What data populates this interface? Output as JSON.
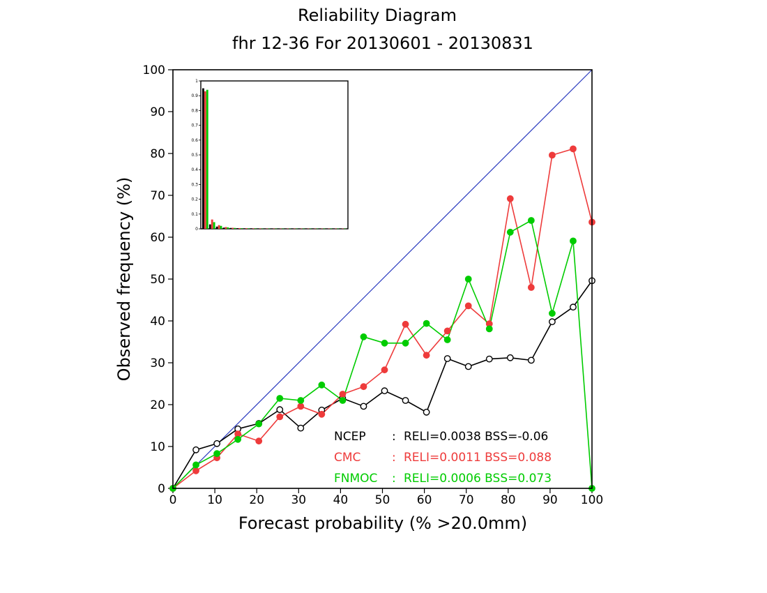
{
  "chart_data": {
    "type": "line",
    "title": "Reliability Diagram",
    "subtitle": "fhr 12-36 For 20130601 - 20130831",
    "xlabel": "Forecast probability (% >20.0mm)",
    "ylabel": "Observed frequency (%)",
    "xlim": [
      0,
      100
    ],
    "ylim": [
      0,
      100
    ],
    "x_ticks": [
      "0",
      "10",
      "20",
      "30",
      "40",
      "50",
      "60",
      "70",
      "80",
      "90",
      "100"
    ],
    "y_ticks": [
      "0",
      "10",
      "20",
      "30",
      "40",
      "50",
      "60",
      "70",
      "80",
      "90",
      "100"
    ],
    "grid": false,
    "diagonal_color": "#2b3bbf",
    "x": [
      0,
      5.5,
      10.5,
      15.5,
      20.5,
      25.5,
      30.5,
      35.5,
      40.5,
      45.5,
      50.5,
      55.5,
      60.5,
      65.5,
      70.5,
      75.5,
      80.5,
      85.5,
      90.5,
      95.5,
      100
    ],
    "series": [
      {
        "name": "NCEP",
        "color": "#000000",
        "marker": "open-circle",
        "values": [
          0,
          9.2,
          10.7,
          14.2,
          15.5,
          18.8,
          14.4,
          18.7,
          21.5,
          19.6,
          23.3,
          21.0,
          18.2,
          31.0,
          29.1,
          30.9,
          31.2,
          30.6,
          39.8,
          43.3,
          49.6
        ],
        "legend_label": "NCEP",
        "legend_sep": ":",
        "legend_stats": "RELI=0.0038  BSS=-0.06"
      },
      {
        "name": "CMC",
        "color": "#ee3b3b",
        "marker": "filled-circle",
        "values": [
          0,
          4.2,
          7.3,
          13.0,
          11.3,
          17.1,
          19.6,
          17.7,
          22.5,
          24.3,
          28.3,
          39.2,
          31.8,
          37.6,
          43.6,
          39.3,
          69.2,
          48.0,
          79.6,
          81.1,
          63.6
        ],
        "legend_label": "CMC",
        "legend_sep": ":",
        "legend_stats": "RELI=0.0011  BSS=0.088"
      },
      {
        "name": "FNMOC",
        "color": "#00cc00",
        "marker": "filled-circle",
        "values": [
          0,
          5.6,
          8.3,
          11.7,
          15.4,
          21.5,
          21.0,
          24.7,
          21.0,
          36.2,
          34.7,
          34.7,
          39.4,
          35.5,
          50.0,
          38.1,
          61.2,
          64.0,
          41.8,
          59.1,
          0
        ],
        "legend_label": "FNMOC",
        "legend_sep": ":",
        "legend_stats": "RELI=0.0006  BSS=0.073"
      }
    ],
    "inset": {
      "type": "bar",
      "ylim": [
        0,
        1
      ],
      "y_ticks": [
        "0",
        "0.1",
        "0.2",
        "0.3",
        "0.4",
        "0.5",
        "0.6",
        "0.7",
        "0.8",
        "0.9",
        "1"
      ],
      "bins": 21,
      "series": [
        {
          "name": "NCEP",
          "color": "#000000",
          "values": [
            0.95,
            0.03,
            0.015,
            0.008,
            0.006,
            0.004,
            0.003,
            0.003,
            0.002,
            0.002,
            0.002,
            0.002,
            0.002,
            0.002,
            0.002,
            0.002,
            0.002,
            0.002,
            0.002,
            0.002,
            0.002
          ]
        },
        {
          "name": "CMC",
          "color": "#ee3b3b",
          "values": [
            0.93,
            0.063,
            0.025,
            0.012,
            0.007,
            0.005,
            0.004,
            0.003,
            0.003,
            0.002,
            0.002,
            0.002,
            0.002,
            0.002,
            0.002,
            0.002,
            0.002,
            0.002,
            0.002,
            0.002,
            0.002
          ]
        },
        {
          "name": "FNMOC",
          "color": "#00cc00",
          "values": [
            0.94,
            0.045,
            0.02,
            0.01,
            0.006,
            0.004,
            0.003,
            0.003,
            0.002,
            0.002,
            0.002,
            0.002,
            0.002,
            0.002,
            0.002,
            0.002,
            0.002,
            0.002,
            0.002,
            0.002,
            0.002
          ]
        }
      ]
    }
  }
}
